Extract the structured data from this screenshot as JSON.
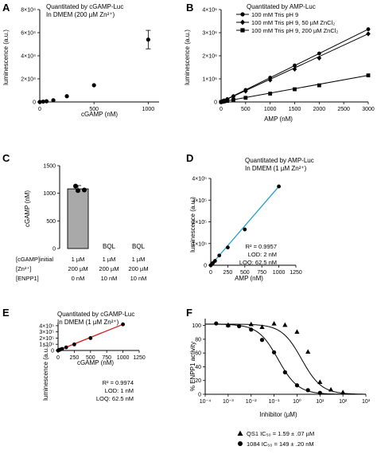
{
  "panels": {
    "A": {
      "letter": "A",
      "title_lines": [
        "Quantitated by cGAMP-Luc",
        "In DMEM (200 µM Zn²⁺)"
      ],
      "xlabel": "cGAMP (nM)",
      "ylabel": "luminescence (a.u.)",
      "xticks": [
        "0",
        "500",
        "1000"
      ],
      "yticks": [
        "0",
        "2×10⁴",
        "4×10⁴",
        "6×10⁴",
        "8×10⁴"
      ]
    },
    "B": {
      "letter": "B",
      "title_lines": [
        "Quantitated by AMP-Luc"
      ],
      "xlabel": "AMP (nM)",
      "ylabel": "luminescence (a.u.)",
      "xticks": [
        "0",
        "500",
        "1000",
        "1500",
        "2000",
        "2500",
        "3000"
      ],
      "yticks": [
        "0",
        "1×10⁶",
        "2×10⁶",
        "3×10⁶",
        "4×10⁶"
      ],
      "legend": [
        "100 mM Tris pH 9",
        "100 mM Tris pH 9, 50 µM ZnCl₂",
        "100 mM Tris pH 9, 200 µM ZnCl₂"
      ]
    },
    "C": {
      "letter": "C",
      "ylabel": "cGAMP (nM)",
      "yticks": [
        "0",
        "500",
        "1000",
        "1500"
      ],
      "bql": [
        "BQL",
        "BQL"
      ],
      "table_rows": [
        [
          "[cGAMP]initial",
          "1 µM",
          "1 µM",
          "1 µM"
        ],
        [
          "[Zn²⁺]",
          "200 µM",
          "200 µM",
          "200 µM"
        ],
        [
          "[ENPP1]",
          "0 nM",
          "10 nM",
          "10 nM"
        ]
      ]
    },
    "D": {
      "letter": "D",
      "title_lines": [
        "Quantitated by AMP-Luc",
        "In DMEM (1 µM Zn²⁺)"
      ],
      "xlabel": "AMP (nM)",
      "ylabel": "luminescence (a.u.)",
      "xticks": [
        "0",
        "250",
        "500",
        "750",
        "1000",
        "1250"
      ],
      "yticks": [
        "0",
        "1×10⁵",
        "2×10⁵",
        "3×10⁵",
        "4×10⁵"
      ],
      "stats": [
        "R² = 0.9957",
        "LOD: 2 nM",
        "LOQ: 62.5 nM"
      ]
    },
    "E": {
      "letter": "E",
      "title_lines": [
        "Quantitated by cGAMP-Luc",
        "In DMEM (1 µM Zn²⁺)"
      ],
      "xlabel": "cGAMP (nM)",
      "ylabel": "luminescence (a.u.)",
      "xticks": [
        "0",
        "250",
        "500",
        "750",
        "1000",
        "1250"
      ],
      "yticks": [
        "0",
        "1×10⁵",
        "2×10⁵",
        "3×10⁵",
        "4×10⁵"
      ],
      "stats": [
        "R² = 0.9974",
        "LOD: 1 nM",
        "LOQ: 62.5 nM"
      ]
    },
    "F": {
      "letter": "F",
      "xlabel": "Inhibitor (µM)",
      "ylabel": "% ENPP1 activity",
      "xticks": [
        "10⁻⁴",
        "10⁻³",
        "10⁻²",
        "10⁻¹",
        "10⁰",
        "10¹",
        "10²",
        "10³"
      ],
      "yticks": [
        "0",
        "20",
        "40",
        "60",
        "80",
        "100"
      ],
      "legend": [
        "QS1 IC₅₀ = 1.59 ± .07 µM",
        "1084 IC₅₀ = 149 ± .20 nM"
      ]
    }
  },
  "chart_data": [
    {
      "panel": "A",
      "type": "scatter",
      "x": [
        0,
        31,
        62.5,
        125,
        250,
        500,
        1000
      ],
      "y": [
        0,
        300,
        600,
        1500,
        5000,
        14500,
        54000
      ],
      "error_y": [
        0,
        0,
        0,
        0,
        0,
        0,
        8000
      ],
      "xlim": [
        0,
        1100
      ],
      "ylim": [
        0,
        80000
      ]
    },
    {
      "panel": "B",
      "type": "line",
      "x": [
        0,
        31,
        62.5,
        125,
        250,
        500,
        1000,
        1500,
        2000,
        3000
      ],
      "series": [
        {
          "name": "100 mM Tris pH 9",
          "marker": "circle",
          "values": [
            0,
            30000,
            60000,
            120000,
            250000,
            520000,
            1050000,
            1580000,
            2100000,
            3150000
          ]
        },
        {
          "name": "100 mM Tris pH 9, 50 µM ZnCl₂",
          "marker": "diamond",
          "values": [
            0,
            28000,
            55000,
            110000,
            230000,
            470000,
            950000,
            1420000,
            1900000,
            2950000
          ]
        },
        {
          "name": "100 mM Tris pH 9, 200 µM ZnCl₂",
          "marker": "square",
          "values": [
            0,
            12000,
            25000,
            45000,
            90000,
            180000,
            360000,
            550000,
            720000,
            1150000
          ]
        }
      ],
      "xlim": [
        0,
        3000
      ],
      "ylim": [
        0,
        4000000
      ],
      "legend": "top-left"
    },
    {
      "panel": "C",
      "type": "bar",
      "categories": [
        "0 nM ENPP1",
        "10 nM ENPP1",
        "10 nM ENPP1"
      ],
      "values": [
        1080,
        null,
        null
      ],
      "error": [
        60,
        null,
        null
      ],
      "points": [
        [
          1130,
          1060,
          1050
        ]
      ],
      "ylim": [
        0,
        1500
      ]
    },
    {
      "panel": "D",
      "type": "scatter",
      "x": [
        0,
        15.6,
        31,
        62.5,
        125,
        250,
        500,
        1000
      ],
      "y": [
        0,
        5000,
        10000,
        20000,
        45000,
        82000,
        165000,
        363000
      ],
      "fit": "linear",
      "fit_color": "#20a0c8",
      "xlim": [
        0,
        1250
      ],
      "ylim": [
        0,
        400000
      ]
    },
    {
      "panel": "E",
      "type": "scatter",
      "x": [
        0,
        15.6,
        31,
        62.5,
        125,
        250,
        500,
        1000
      ],
      "y": [
        0,
        7000,
        14000,
        26000,
        50000,
        98000,
        200000,
        422000
      ],
      "fit": "linear",
      "fit_color": "#d02020",
      "xlim": [
        0,
        1250
      ],
      "ylim": [
        0,
        450000
      ]
    },
    {
      "panel": "F",
      "type": "scatter",
      "x_scale": "log",
      "series": [
        {
          "name": "QS1",
          "marker": "triangle",
          "ic50_uM": 1.59,
          "x": [
            0.001,
            0.01,
            0.03,
            0.1,
            0.3,
            1,
            3,
            10,
            30,
            100
          ],
          "values": [
            101,
            102,
            98,
            103,
            101,
            91,
            62,
            18,
            7,
            3
          ]
        },
        {
          "name": "1084",
          "marker": "circle",
          "ic50_uM": 0.149,
          "x": [
            0.0003,
            0.001,
            0.003,
            0.01,
            0.03,
            0.1,
            0.3,
            1,
            3,
            10
          ],
          "values": [
            103,
            100,
            99,
            94,
            79,
            61,
            32,
            13,
            6,
            2
          ]
        }
      ],
      "xlim": [
        0.0001,
        1000
      ],
      "ylim": [
        0,
        110
      ]
    }
  ]
}
